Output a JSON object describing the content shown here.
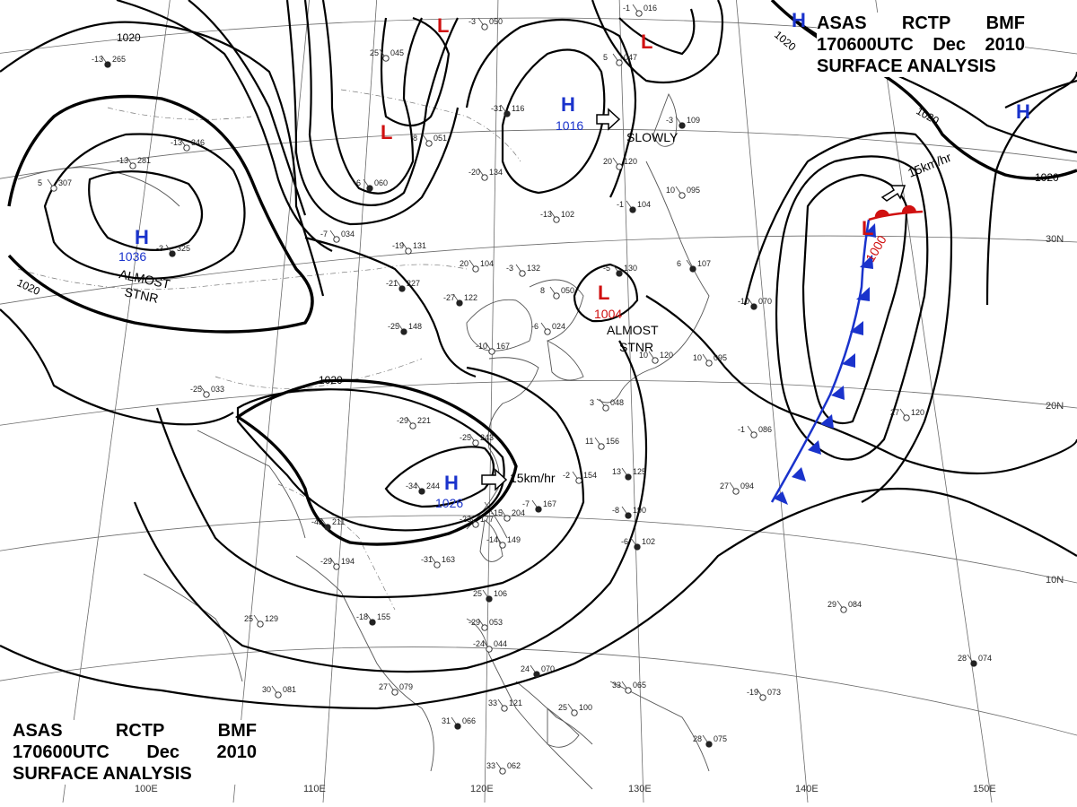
{
  "header": {
    "line1": [
      "ASAS",
      "RCTP",
      "BMF"
    ],
    "line2": [
      "170600UTC",
      "Dec",
      "2010"
    ],
    "line3": "SURFACE ANALYSIS"
  },
  "lon_labels": [
    "110E",
    "120E",
    "130E",
    "140E",
    "150E",
    "100E"
  ],
  "lat_labels": [
    "30N",
    "20N",
    "10N"
  ],
  "isobar_labels": [
    "1020",
    "1020",
    "1020",
    "1020",
    "1020",
    "1020"
  ],
  "pressure_centers": [
    {
      "symbol": "H",
      "value": "1036",
      "color": "#1a33cc"
    },
    {
      "symbol": "H",
      "value": "1016",
      "color": "#1a33cc"
    },
    {
      "symbol": "H",
      "value": "1026",
      "color": "#1a33cc"
    },
    {
      "symbol": "H",
      "value": "",
      "color": "#1a33cc"
    },
    {
      "symbol": "H",
      "value": "",
      "color": "#1a33cc"
    },
    {
      "symbol": "L",
      "value": "1004",
      "color": "#d01010"
    },
    {
      "symbol": "L",
      "value": "1000",
      "color": "#d01010"
    },
    {
      "symbol": "L",
      "value": "",
      "color": "#d01010"
    },
    {
      "symbol": "L",
      "value": "",
      "color": "#d01010"
    },
    {
      "symbol": "L",
      "value": "",
      "color": "#d01010"
    }
  ],
  "movements": [
    "ALMOST",
    "STNR",
    "SLOWLY",
    "ALMOST",
    "STNR",
    "15km/hr",
    "15km/hr"
  ],
  "stations": [
    [
      "265",
      "-13"
    ],
    [
      "281",
      "-13"
    ],
    [
      "307",
      "5"
    ],
    [
      "325",
      "-3"
    ],
    [
      "346",
      "-13"
    ],
    [
      "051",
      "8"
    ],
    [
      "060",
      "-6"
    ],
    [
      "045",
      "25"
    ],
    [
      "050",
      "-3"
    ],
    [
      "116",
      "-31"
    ],
    [
      "047",
      "5"
    ],
    [
      "016",
      "-1"
    ],
    [
      "109",
      "-3"
    ],
    [
      "134",
      "-20"
    ],
    [
      "120",
      "20"
    ],
    [
      "104",
      "-1"
    ],
    [
      "095",
      "10"
    ],
    [
      "102",
      "-13"
    ],
    [
      "130",
      "-5"
    ],
    [
      "034",
      "-7"
    ],
    [
      "131",
      "-19"
    ],
    [
      "227",
      "-21"
    ],
    [
      "104",
      "20"
    ],
    [
      "132",
      "-3"
    ],
    [
      "122",
      "-27"
    ],
    [
      "050",
      "8"
    ],
    [
      "024",
      "-6"
    ],
    [
      "107",
      "6"
    ],
    [
      "095",
      "10"
    ],
    [
      "120",
      "10"
    ],
    [
      "148",
      "-25"
    ],
    [
      "167",
      "-10"
    ],
    [
      "221",
      "-29"
    ],
    [
      "244",
      "-34"
    ],
    [
      "243",
      "-25"
    ],
    [
      "156",
      "11"
    ],
    [
      "125",
      "13"
    ],
    [
      "154",
      "-2"
    ],
    [
      "204",
      "-15"
    ],
    [
      "167",
      "-7"
    ],
    [
      "177",
      "-23"
    ],
    [
      "149",
      "-14"
    ],
    [
      "211",
      "-42"
    ],
    [
      "194",
      "-29"
    ],
    [
      "163",
      "-31"
    ],
    [
      "102",
      "-6"
    ],
    [
      "086",
      "-1"
    ],
    [
      "094",
      "27"
    ],
    [
      "070",
      "-10"
    ],
    [
      "120",
      "27"
    ],
    [
      "084",
      "29"
    ],
    [
      "106",
      "25"
    ],
    [
      "053",
      "-29"
    ],
    [
      "044",
      "-24"
    ],
    [
      "070",
      "24"
    ],
    [
      "065",
      "33"
    ],
    [
      "079",
      "27"
    ],
    [
      "066",
      "31"
    ],
    [
      "121",
      "33"
    ],
    [
      "100",
      "25"
    ],
    [
      "075",
      "28"
    ],
    [
      "062",
      "33"
    ],
    [
      "073",
      "-19"
    ],
    [
      "074",
      "28"
    ],
    [
      "081",
      "30"
    ],
    [
      "129",
      "25"
    ],
    [
      "155",
      "-18"
    ],
    [
      "048",
      "3"
    ],
    [
      "033",
      "-25"
    ],
    [
      "190",
      "-8"
    ]
  ],
  "colors": {
    "high": "#1a33cc",
    "low": "#d01010",
    "cold_front": "#1a33cc",
    "warm_front": "#d01010"
  }
}
